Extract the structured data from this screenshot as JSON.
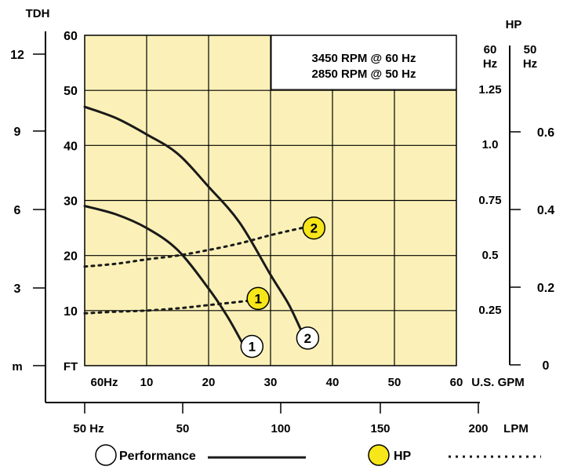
{
  "chart_data": {
    "type": "line",
    "title": "",
    "info_box": [
      "3450 RPM @ 60 Hz",
      "2850 RPM @ 50 Hz"
    ],
    "colors": {
      "plot_bg": "#FBF1B8",
      "hp_marker": "#F7E619",
      "performance_marker": "#FFFFFF",
      "line": "#1A1A1A",
      "grid": "#000000"
    },
    "grid": true,
    "axes": {
      "head_ft": {
        "label": "FT",
        "ticks": [
          "10",
          "20",
          "30",
          "40",
          "50",
          "60"
        ],
        "range": [
          0,
          60
        ]
      },
      "head_m": {
        "label_top": "TDH",
        "label_bottom": "m",
        "ticks": [
          "3",
          "6",
          "9",
          "12"
        ]
      },
      "flow_gpm": {
        "label": "U.S. GPM",
        "prefix": "60Hz",
        "ticks": [
          "10",
          "20",
          "30",
          "40",
          "50",
          "60"
        ],
        "range": [
          0,
          60
        ]
      },
      "flow_lpm": {
        "prefix": "50 Hz",
        "unit": "LPM",
        "ticks": [
          "50",
          "100",
          "150",
          "200"
        ]
      },
      "hp_60": {
        "label_top": "HP",
        "sub_a": "60",
        "sub_b": "Hz",
        "ticks": [
          "0.25",
          "0.5",
          "0.75",
          "1.0",
          "1.25"
        ]
      },
      "hp_50": {
        "sub_a": "50",
        "sub_b": "Hz",
        "ticks": [
          "0",
          "0.2",
          "0.4",
          "0.6"
        ]
      }
    },
    "series": [
      {
        "type": "performance",
        "marker": "1",
        "x": [
          0,
          5,
          10,
          15,
          20,
          23,
          25.5
        ],
        "y": [
          29,
          27.5,
          25,
          21,
          14,
          9,
          4
        ]
      },
      {
        "type": "performance",
        "marker": "2",
        "x": [
          0,
          5,
          10,
          15,
          20,
          25,
          30,
          33,
          35.5
        ],
        "y": [
          47,
          45,
          42,
          38.5,
          32.5,
          26,
          16.5,
          11,
          5
        ]
      },
      {
        "type": "hp",
        "marker": "1",
        "x": [
          0,
          5,
          10,
          15,
          20,
          25,
          28
        ],
        "y": [
          9.5,
          9.8,
          10,
          10.4,
          11,
          11.6,
          12
        ]
      },
      {
        "type": "hp",
        "marker": "2",
        "x": [
          0,
          5,
          10,
          15,
          20,
          25,
          30,
          35
        ],
        "y": [
          18,
          18.5,
          19.3,
          20,
          21,
          22.2,
          23.7,
          25
        ]
      }
    ],
    "series_markers": [
      {
        "label": "1",
        "kind": "performance",
        "x": 27,
        "y": 3.5
      },
      {
        "label": "2",
        "kind": "performance",
        "x": 36,
        "y": 5
      },
      {
        "label": "1",
        "kind": "hp",
        "x": 28,
        "y": 12.2
      },
      {
        "label": "2",
        "kind": "hp",
        "x": 37,
        "y": 25
      }
    ],
    "legend": {
      "performance": "Performance",
      "hp": "HP"
    }
  }
}
